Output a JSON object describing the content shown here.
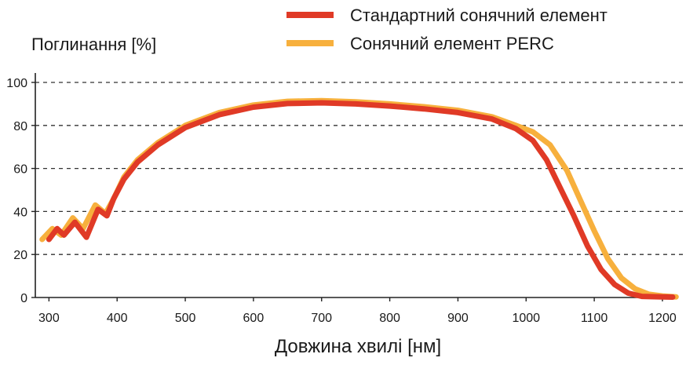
{
  "chart_data": {
    "type": "line",
    "title": "",
    "xlabel": "Довжина хвилі [нм]",
    "ylabel": "Поглинання [%]",
    "xlim": [
      280,
      1230
    ],
    "ylim": [
      0,
      100
    ],
    "x_ticks": [
      300,
      400,
      500,
      600,
      700,
      800,
      900,
      1000,
      1100,
      1200
    ],
    "y_ticks": [
      0,
      20,
      40,
      60,
      80,
      100
    ],
    "grid": "horizontal dashed",
    "legend_position": "top-right",
    "series": [
      {
        "name": "Стандартний сонячний елемент",
        "color": "#e03a26",
        "points": [
          [
            300,
            27
          ],
          [
            312,
            32
          ],
          [
            322,
            29
          ],
          [
            338,
            35
          ],
          [
            355,
            28
          ],
          [
            372,
            41
          ],
          [
            385,
            38
          ],
          [
            395,
            46
          ],
          [
            410,
            55
          ],
          [
            430,
            63
          ],
          [
            460,
            71
          ],
          [
            500,
            79
          ],
          [
            550,
            85
          ],
          [
            600,
            88.5
          ],
          [
            650,
            90.2
          ],
          [
            700,
            90.5
          ],
          [
            750,
            90
          ],
          [
            800,
            89
          ],
          [
            850,
            87.7
          ],
          [
            900,
            86
          ],
          [
            950,
            83
          ],
          [
            985,
            78.5
          ],
          [
            1010,
            73
          ],
          [
            1030,
            64
          ],
          [
            1050,
            51
          ],
          [
            1070,
            38
          ],
          [
            1090,
            24
          ],
          [
            1110,
            13
          ],
          [
            1130,
            6
          ],
          [
            1150,
            2
          ],
          [
            1170,
            0.5
          ],
          [
            1200,
            0.3
          ],
          [
            1215,
            0.2
          ]
        ]
      },
      {
        "name": "Сонячний елемент PERC",
        "color": "#f7b03d",
        "points": [
          [
            290,
            27
          ],
          [
            305,
            32
          ],
          [
            318,
            29
          ],
          [
            335,
            37
          ],
          [
            350,
            32
          ],
          [
            368,
            43
          ],
          [
            383,
            39
          ],
          [
            395,
            46
          ],
          [
            410,
            56
          ],
          [
            430,
            64
          ],
          [
            460,
            72
          ],
          [
            500,
            80
          ],
          [
            550,
            86
          ],
          [
            600,
            89.5
          ],
          [
            650,
            91.2
          ],
          [
            700,
            91.5
          ],
          [
            750,
            91
          ],
          [
            800,
            90
          ],
          [
            850,
            88.7
          ],
          [
            900,
            87
          ],
          [
            950,
            84
          ],
          [
            985,
            80
          ],
          [
            1010,
            77
          ],
          [
            1035,
            71
          ],
          [
            1060,
            59
          ],
          [
            1080,
            45
          ],
          [
            1100,
            31
          ],
          [
            1120,
            18
          ],
          [
            1140,
            9
          ],
          [
            1160,
            4
          ],
          [
            1180,
            1.5
          ],
          [
            1200,
            0.7
          ],
          [
            1220,
            0.3
          ]
        ]
      }
    ]
  }
}
